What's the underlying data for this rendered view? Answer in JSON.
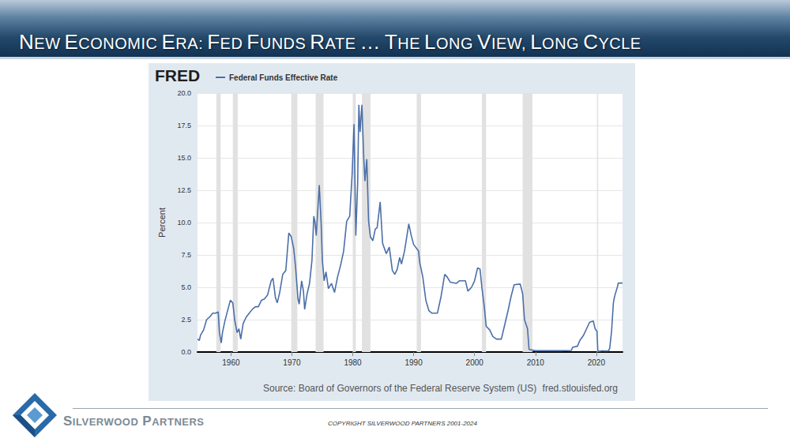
{
  "header": {
    "title": "NEW ECONOMIC ERA: FED FUNDS RATE … THE LONG VIEW, LONG CYCLE"
  },
  "footer": {
    "company": "SILVERWOOD PARTNERS",
    "copyright": "COPYRIGHT SILVERWOOD PARTNERS 2001-2024"
  },
  "chart_data": {
    "type": "line",
    "logo": "FRED",
    "y_label": "Percent",
    "source": "Source: Board of Governors of the Federal Reserve System (US)",
    "source_url": "fred.stlouisfed.org",
    "legend": "top-left",
    "grid": true,
    "xlim": [
      1954.5,
      2024.3
    ],
    "xticks": [
      1960,
      1970,
      1980,
      1990,
      2000,
      2010,
      2020
    ],
    "ylim": [
      0,
      20
    ],
    "yticks": [
      {
        "value": 0,
        "label": "0.0"
      },
      2.5,
      {
        "value": 5,
        "label": "5.0"
      },
      7.5,
      {
        "value": 10,
        "label": "10.0"
      },
      12.5,
      {
        "value": 15,
        "label": "15.0"
      },
      17.5,
      {
        "value": 20,
        "label": "20.0"
      }
    ],
    "recessions": [
      [
        1957.6,
        1958.3
      ],
      [
        1960.3,
        1961.1
      ],
      [
        1969.9,
        1970.9
      ],
      [
        1973.9,
        1975.2
      ],
      [
        1980.0,
        1980.5
      ],
      [
        1981.5,
        1982.9
      ],
      [
        1990.5,
        1991.2
      ],
      [
        2001.2,
        2001.9
      ],
      [
        2007.9,
        2009.5
      ],
      [
        2020.1,
        2020.3
      ]
    ],
    "x": [
      1954.5,
      1954.8,
      1955.0,
      1955.5,
      1956.0,
      1956.5,
      1957.0,
      1957.5,
      1957.9,
      1958.1,
      1958.4,
      1958.6,
      1959.0,
      1959.5,
      1959.9,
      1960.3,
      1960.6,
      1961.0,
      1961.3,
      1961.6,
      1962.0,
      1962.5,
      1963.0,
      1963.5,
      1964.0,
      1964.5,
      1965.0,
      1965.5,
      1966.0,
      1966.6,
      1966.9,
      1967.3,
      1967.6,
      1968.0,
      1968.5,
      1969.0,
      1969.5,
      1969.9,
      1970.3,
      1970.6,
      1971.0,
      1971.2,
      1971.6,
      1971.9,
      1972.1,
      1972.5,
      1972.9,
      1973.3,
      1973.6,
      1973.8,
      1974.0,
      1974.5,
      1974.8,
      1975.0,
      1975.3,
      1975.6,
      1976.0,
      1976.5,
      1977.0,
      1977.5,
      1978.0,
      1978.5,
      1979.0,
      1979.5,
      1979.9,
      1980.2,
      1980.5,
      1980.8,
      1981.0,
      1981.2,
      1981.5,
      1981.8,
      1982.0,
      1982.3,
      1982.6,
      1982.9,
      1983.3,
      1983.7,
      1984.0,
      1984.5,
      1984.9,
      1985.5,
      1986.0,
      1986.5,
      1986.9,
      1987.3,
      1987.7,
      1988.0,
      1988.5,
      1989.2,
      1989.6,
      1990.0,
      1990.8,
      1991.0,
      1991.5,
      1992.0,
      1992.5,
      1993.0,
      1993.9,
      1994.5,
      1995.1,
      1995.5,
      1996.0,
      1997.0,
      1997.5,
      1998.5,
      1998.9,
      1999.5,
      2000.0,
      2000.5,
      2000.9,
      2001.2,
      2001.6,
      2001.9,
      2002.5,
      2003.0,
      2003.6,
      2004.4,
      2004.9,
      2005.5,
      2006.0,
      2006.5,
      2007.5,
      2007.9,
      2008.2,
      2008.7,
      2008.95,
      2010.0,
      2012.0,
      2014.0,
      2015.9,
      2016.1,
      2016.9,
      2017.3,
      2017.9,
      2018.4,
      2018.9,
      2019.5,
      2019.8,
      2020.1,
      2020.25,
      2021.0,
      2022.0,
      2022.2,
      2022.5,
      2022.8,
      2023.0,
      2023.5,
      2023.6,
      2024.3
    ],
    "series": [
      {
        "name": "Federal Funds Effective Rate",
        "color": "#4b6fa8",
        "values": [
          1.0,
          0.9,
          1.3,
          1.7,
          2.5,
          2.7,
          3.0,
          3.0,
          3.1,
          1.5,
          0.7,
          1.5,
          2.4,
          3.3,
          4.0,
          3.8,
          2.5,
          1.5,
          1.8,
          1.0,
          2.2,
          2.7,
          3.0,
          3.3,
          3.5,
          3.5,
          4.0,
          4.1,
          4.4,
          5.5,
          5.7,
          4.2,
          3.8,
          4.6,
          6.0,
          6.3,
          9.2,
          8.9,
          8.0,
          6.6,
          4.1,
          3.7,
          5.5,
          4.7,
          3.3,
          4.5,
          5.3,
          7.1,
          10.5,
          10.0,
          9.0,
          12.9,
          10.0,
          7.1,
          5.5,
          6.2,
          4.9,
          5.3,
          4.6,
          5.8,
          6.7,
          7.8,
          10.1,
          10.5,
          13.8,
          17.6,
          9.0,
          13.0,
          19.1,
          17.0,
          19.1,
          15.0,
          13.2,
          14.9,
          10.1,
          8.9,
          8.6,
          9.5,
          9.6,
          11.6,
          8.4,
          7.6,
          8.1,
          6.3,
          6.0,
          6.4,
          7.3,
          6.8,
          7.8,
          9.9,
          9.0,
          8.3,
          7.8,
          6.9,
          5.8,
          4.0,
          3.2,
          3.0,
          3.0,
          4.3,
          6.0,
          5.8,
          5.4,
          5.3,
          5.5,
          5.5,
          4.7,
          5.0,
          5.5,
          6.5,
          6.4,
          5.0,
          3.5,
          2.0,
          1.7,
          1.2,
          1.0,
          1.0,
          2.0,
          3.2,
          4.3,
          5.2,
          5.25,
          4.5,
          2.5,
          1.8,
          0.2,
          0.1,
          0.1,
          0.1,
          0.12,
          0.37,
          0.45,
          0.9,
          1.3,
          1.8,
          2.3,
          2.4,
          1.8,
          1.6,
          0.05,
          0.09,
          0.08,
          0.3,
          1.6,
          3.8,
          4.3,
          5.1,
          5.33,
          5.33
        ]
      }
    ]
  }
}
